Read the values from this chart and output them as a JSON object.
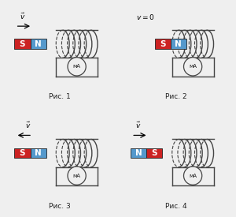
{
  "bg_color": "#efefef",
  "panels": [
    {
      "label": "Рис. 1",
      "velocity": "right",
      "magnet_labels": [
        "S",
        "N"
      ],
      "magnet_inserted": false,
      "v_text": "v"
    },
    {
      "label": "Рис. 2",
      "velocity": "none",
      "magnet_labels": [
        "S",
        "N"
      ],
      "magnet_inserted": true,
      "v_text": "v = 0"
    },
    {
      "label": "Рис. 3",
      "velocity": "left",
      "magnet_labels": [
        "S",
        "N"
      ],
      "magnet_inserted": false,
      "v_text": "v"
    },
    {
      "label": "Рис. 4",
      "velocity": "right",
      "magnet_labels": [
        "N",
        "S"
      ],
      "magnet_inserted": false,
      "v_text": "v"
    }
  ],
  "S_color": "#cc2222",
  "N_color": "#5599cc",
  "coil_color": "#444444",
  "frame_color": "#444444",
  "text_color": "#222222",
  "white": "#ffffff"
}
